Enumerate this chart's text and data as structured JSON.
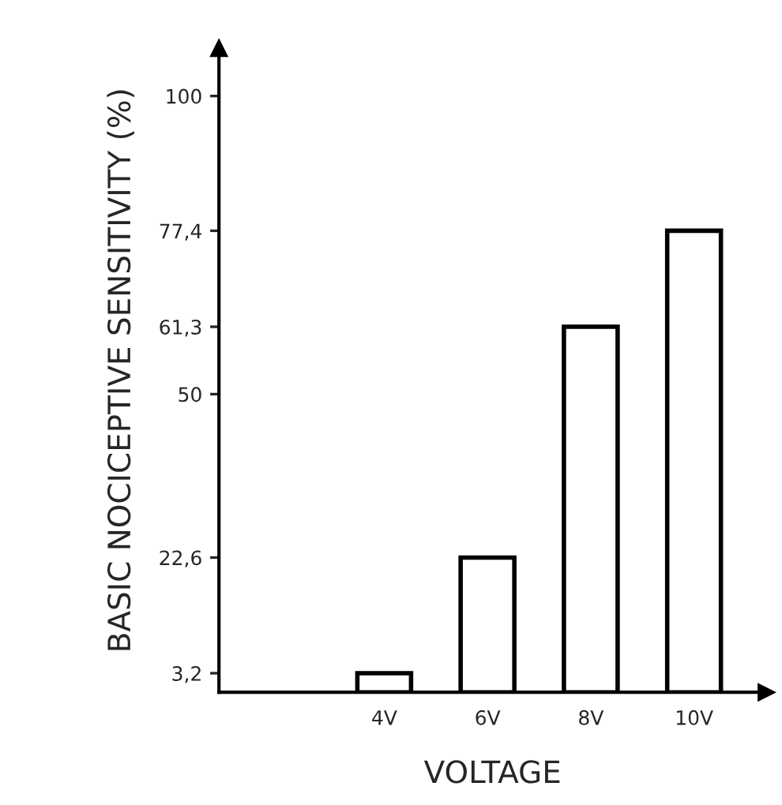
{
  "chart_data": {
    "type": "bar",
    "xlabel": "VOLTAGE",
    "ylabel": "BASIC NOCICEPTIVE SENSITIVITY (%)",
    "categories": [
      "4V",
      "6V",
      "8V",
      "10V"
    ],
    "values": [
      3.2,
      22.6,
      61.3,
      77.4
    ],
    "color": "#ffffff",
    "ylim": [
      0,
      108
    ],
    "yticks": [
      {
        "value": 3.2,
        "label": "3,2"
      },
      {
        "value": 22.6,
        "label": "22,6"
      },
      50,
      {
        "value": 61.3,
        "label": "61,3"
      },
      {
        "value": 77.4,
        "label": "77,4"
      },
      100
    ],
    "grid": false
  }
}
